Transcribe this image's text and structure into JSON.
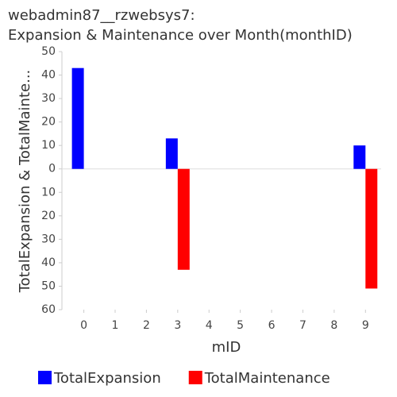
{
  "chart_data": {
    "type": "bar",
    "title": [
      "webadmin87__rzwebsys7:",
      "Expansion & Maintenance over Month(monthID)"
    ],
    "x_label": "mID",
    "y_label": "TotalExpansion & TotalMainte...",
    "x": [
      0,
      3,
      9
    ],
    "series": [
      {
        "name": "TotalExpansion",
        "color": "#0000ff",
        "values": [
          43,
          13,
          10
        ]
      },
      {
        "name": "TotalMaintenance",
        "color": "#ff0000",
        "values": [
          null,
          -43,
          -51
        ]
      }
    ],
    "xlim": [
      -0.7,
      9.5
    ],
    "xticks": [
      0,
      1,
      2,
      3,
      4,
      5,
      6,
      7,
      8,
      9
    ],
    "ylim": [
      -60,
      50
    ],
    "yticks": [
      50,
      40,
      30,
      20,
      10,
      0,
      {
        "value": -10,
        "label": "10"
      },
      {
        "value": -20,
        "label": "20"
      },
      {
        "value": -30,
        "label": "30"
      },
      {
        "value": -40,
        "label": "40"
      },
      {
        "value": -50,
        "label": "50"
      },
      {
        "value": -60,
        "label": "60"
      }
    ],
    "legend": "bottom"
  }
}
